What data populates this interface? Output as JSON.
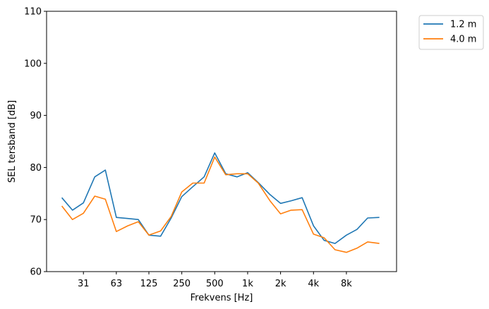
{
  "chart_data": {
    "type": "line",
    "xlabel": "Frekvens [Hz]",
    "ylabel": "SEL tersband [dB]",
    "ylim": [
      60,
      110
    ],
    "yticks": [
      60,
      70,
      80,
      90,
      100,
      110
    ],
    "xscale": "log",
    "xlim": [
      14.5,
      23000
    ],
    "x": [
      20,
      25,
      31.5,
      40,
      50,
      63,
      80,
      100,
      125,
      160,
      200,
      250,
      315,
      400,
      500,
      630,
      800,
      1000,
      1250,
      1600,
      2000,
      2500,
      3150,
      4000,
      5000,
      6300,
      8000,
      10000,
      12500,
      16000
    ],
    "xticks": [
      {
        "value": 31.5,
        "label": "31"
      },
      {
        "value": 63,
        "label": "63"
      },
      {
        "value": 125,
        "label": "125"
      },
      {
        "value": 250,
        "label": "250"
      },
      {
        "value": 500,
        "label": "500"
      },
      {
        "value": 1000,
        "label": "1k"
      },
      {
        "value": 2000,
        "label": "2k"
      },
      {
        "value": 4000,
        "label": "4k"
      },
      {
        "value": 8000,
        "label": "8k"
      }
    ],
    "series": [
      {
        "name": "1.2 m",
        "color": "#1f77b4",
        "values": [
          74.2,
          71.8,
          73.2,
          78.2,
          79.5,
          70.4,
          70.2,
          70.0,
          67.0,
          66.8,
          70.3,
          74.4,
          76.3,
          78.2,
          82.8,
          78.8,
          78.2,
          79.0,
          77.1,
          74.8,
          73.1,
          73.6,
          74.2,
          68.8,
          66.0,
          65.4,
          67.0,
          68.1,
          70.3,
          70.4
        ]
      },
      {
        "name": "4.0 m",
        "color": "#ff7f0e",
        "values": [
          72.6,
          70.0,
          71.2,
          74.5,
          73.9,
          67.7,
          68.8,
          69.6,
          67.0,
          67.8,
          70.6,
          75.3,
          77.0,
          77.0,
          82.0,
          78.6,
          78.8,
          78.8,
          77.0,
          73.6,
          71.1,
          71.8,
          71.9,
          67.2,
          66.5,
          64.2,
          63.7,
          64.5,
          65.7,
          65.4
        ]
      }
    ],
    "legend": "upper-right outside"
  }
}
